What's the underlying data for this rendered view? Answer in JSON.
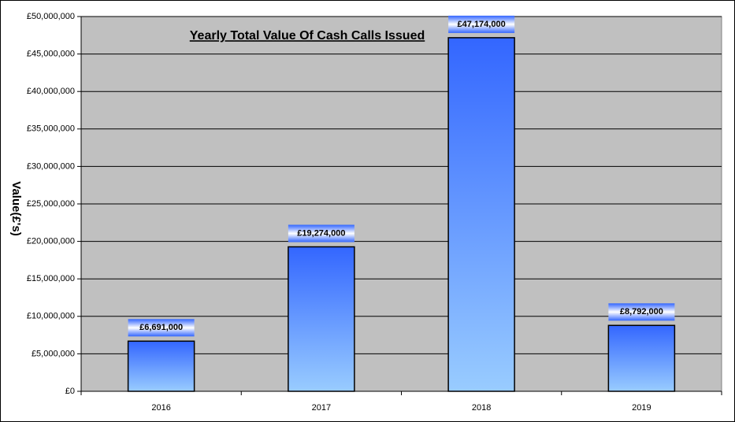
{
  "chart_data": {
    "type": "bar",
    "title": "Yearly Total Value Of Cash Calls Issued",
    "y_label": "Value(£'s)",
    "categories": [
      "2016",
      "2017",
      "2018",
      "2019"
    ],
    "values": [
      6691000,
      19274000,
      47174000,
      8792000
    ],
    "value_labels": [
      "£6,691,000",
      "£19,274,000",
      "£47,174,000",
      "£8,792,000"
    ],
    "color": "#3366ff",
    "ylim": [
      0,
      50000000
    ],
    "yticks": [
      {
        "value": 0,
        "label": "£0"
      },
      {
        "value": 5000000,
        "label": "£5,000,000"
      },
      {
        "value": 10000000,
        "label": "£10,000,000"
      },
      {
        "value": 15000000,
        "label": "£15,000,000"
      },
      {
        "value": 20000000,
        "label": "£20,000,000"
      },
      {
        "value": 25000000,
        "label": "£25,000,000"
      },
      {
        "value": 30000000,
        "label": "£30,000,000"
      },
      {
        "value": 35000000,
        "label": "£35,000,000"
      },
      {
        "value": 40000000,
        "label": "£40,000,000"
      },
      {
        "value": 45000000,
        "label": "£45,000,000"
      },
      {
        "value": 50000000,
        "label": "£50,000,000"
      }
    ],
    "grid": true
  }
}
